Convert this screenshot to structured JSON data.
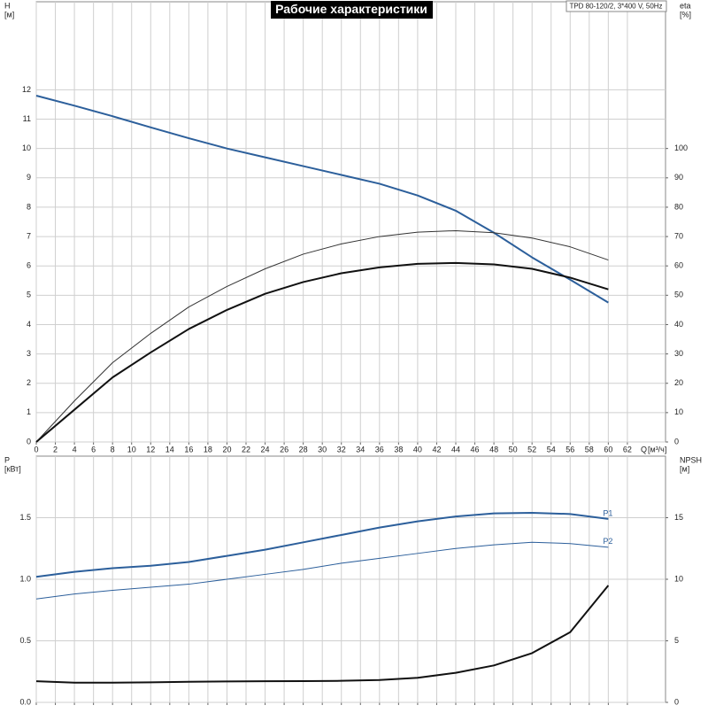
{
  "chart_data": [
    {
      "type": "line",
      "title": "Рабочие характеристики",
      "annotation": "TPD 80-120/2, 3*400 V, 50Hz",
      "ylabel": "H",
      "yunit": "[м]",
      "y2label": "eta",
      "y2unit": "[%]",
      "xlabel": "Q",
      "xunit": "[м³/ч]",
      "x": [
        0,
        4,
        8,
        12,
        16,
        20,
        24,
        28,
        32,
        36,
        40,
        44,
        48,
        52,
        56,
        60
      ],
      "xlim": [
        0,
        66
      ],
      "xticks": [
        0,
        2,
        4,
        6,
        8,
        10,
        12,
        14,
        16,
        18,
        20,
        22,
        24,
        26,
        28,
        30,
        32,
        34,
        36,
        38,
        40,
        42,
        44,
        46,
        48,
        50,
        52,
        54,
        56,
        58,
        60,
        62
      ],
      "ylim": [
        0,
        15
      ],
      "yticks": [
        0,
        1,
        2,
        3,
        4,
        5,
        6,
        7,
        8,
        9,
        10,
        11,
        12
      ],
      "y2lim": [
        0,
        150
      ],
      "y2ticks": [
        0,
        10,
        20,
        30,
        40,
        50,
        60,
        70,
        80,
        90,
        100
      ],
      "grid": true,
      "series": [
        {
          "color": "#2c5f9b",
          "style": "thick",
          "values": [
            11.8,
            11.46,
            11.1,
            10.72,
            10.35,
            10.0,
            9.7,
            9.4,
            9.1,
            8.8,
            8.4,
            7.88,
            7.13,
            6.29,
            5.53,
            4.75
          ]
        },
        {
          "color": "#333333",
          "style": "thin",
          "axis": "y2",
          "values": [
            0,
            14,
            27,
            37,
            46,
            53,
            59,
            64,
            67.5,
            70,
            71.5,
            72,
            71.3,
            69.5,
            66.5,
            62
          ]
        },
        {
          "color": "#111111",
          "style": "thick",
          "axis": "y2",
          "values": [
            0,
            11,
            22,
            30.5,
            38.5,
            45,
            50.5,
            54.5,
            57.5,
            59.5,
            60.7,
            61,
            60.5,
            59,
            56,
            52
          ]
        }
      ]
    },
    {
      "type": "line",
      "ylabel": "P",
      "yunit": "[кВт]",
      "y2label": "NPSH",
      "y2unit": "[м]",
      "x": [
        0,
        4,
        8,
        12,
        16,
        20,
        24,
        28,
        32,
        36,
        40,
        44,
        48,
        52,
        56,
        60
      ],
      "xlim": [
        0,
        66
      ],
      "xticks": [
        0,
        2,
        4,
        6,
        8,
        10,
        12,
        14,
        16,
        18,
        20,
        22,
        24,
        26,
        28,
        30,
        32,
        34,
        36,
        38,
        40,
        42,
        44,
        46,
        48,
        50,
        52,
        54,
        56,
        58,
        60,
        62
      ],
      "ylim": [
        0,
        2
      ],
      "yticks": [
        {
          "value": 0,
          "label": "0.0"
        },
        {
          "value": 0.5,
          "label": "0.5"
        },
        {
          "value": 1,
          "label": "1.0"
        },
        {
          "value": 1.5,
          "label": "1.5"
        }
      ],
      "y2lim": [
        0,
        20
      ],
      "y2ticks": [
        0,
        5,
        10,
        15
      ],
      "grid": true,
      "series": [
        {
          "name": "P1",
          "color": "#2c5f9b",
          "style": "thick",
          "values": [
            1.02,
            1.06,
            1.09,
            1.11,
            1.14,
            1.19,
            1.24,
            1.3,
            1.36,
            1.42,
            1.47,
            1.51,
            1.535,
            1.54,
            1.53,
            1.49
          ]
        },
        {
          "name": "P2",
          "color": "#2c5f9b",
          "style": "thin",
          "values": [
            0.84,
            0.88,
            0.91,
            0.935,
            0.96,
            1.0,
            1.04,
            1.08,
            1.13,
            1.17,
            1.21,
            1.25,
            1.28,
            1.3,
            1.29,
            1.26
          ]
        },
        {
          "color": "#111111",
          "style": "thick",
          "axis": "y2",
          "values": [
            1.72,
            1.6,
            1.6,
            1.63,
            1.67,
            1.7,
            1.72,
            1.73,
            1.75,
            1.82,
            2.0,
            2.4,
            3.0,
            4.0,
            5.7,
            9.5
          ]
        }
      ]
    }
  ]
}
